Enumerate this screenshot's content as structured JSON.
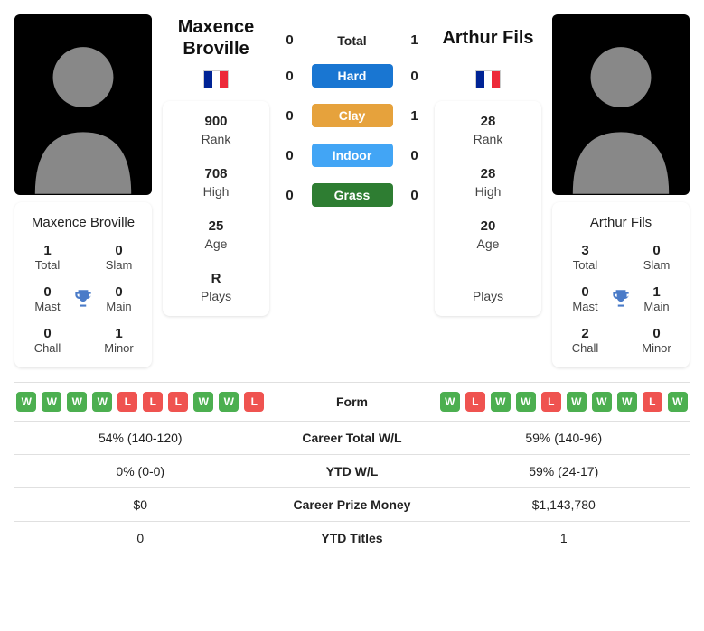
{
  "player1": {
    "name": "Maxence Broville",
    "country": "france",
    "rank": "900",
    "high": "708",
    "age": "25",
    "plays": "R",
    "titles": {
      "total": "1",
      "slam": "0",
      "mast": "0",
      "main": "0",
      "chall": "0",
      "minor": "1"
    },
    "form": [
      "W",
      "W",
      "W",
      "W",
      "L",
      "L",
      "L",
      "W",
      "W",
      "L"
    ],
    "career_wl": "54% (140-120)",
    "ytd_wl": "0% (0-0)",
    "prize": "$0",
    "ytd_titles": "0"
  },
  "player2": {
    "name": "Arthur Fils",
    "country": "france",
    "rank": "28",
    "high": "28",
    "age": "20",
    "plays": "",
    "titles": {
      "total": "3",
      "slam": "0",
      "mast": "0",
      "main": "1",
      "chall": "2",
      "minor": "0"
    },
    "form": [
      "W",
      "L",
      "W",
      "W",
      "L",
      "W",
      "W",
      "W",
      "L",
      "W"
    ],
    "career_wl": "59% (140-96)",
    "ytd_wl": "59% (24-17)",
    "prize": "$1,143,780",
    "ytd_titles": "1"
  },
  "h2h": {
    "total": {
      "label": "Total",
      "p1": "0",
      "p2": "1"
    },
    "hard": {
      "label": "Hard",
      "p1": "0",
      "p2": "0",
      "color": "#1976d2"
    },
    "clay": {
      "label": "Clay",
      "p1": "0",
      "p2": "1",
      "color": "#e6a23c"
    },
    "indoor": {
      "label": "Indoor",
      "p1": "0",
      "p2": "0",
      "color": "#42a5f5"
    },
    "grass": {
      "label": "Grass",
      "p1": "0",
      "p2": "0",
      "color": "#2e7d32"
    }
  },
  "labels": {
    "rank": "Rank",
    "high": "High",
    "age": "Age",
    "plays": "Plays",
    "total": "Total",
    "slam": "Slam",
    "mast": "Mast",
    "main": "Main",
    "chall": "Chall",
    "minor": "Minor",
    "form": "Form",
    "career_wl": "Career Total W/L",
    "ytd_wl": "YTD W/L",
    "prize": "Career Prize Money",
    "ytd_titles": "YTD Titles"
  },
  "colors": {
    "win_badge": "#4caf50",
    "loss_badge": "#ef5350",
    "trophy": "#4a7bc8"
  }
}
